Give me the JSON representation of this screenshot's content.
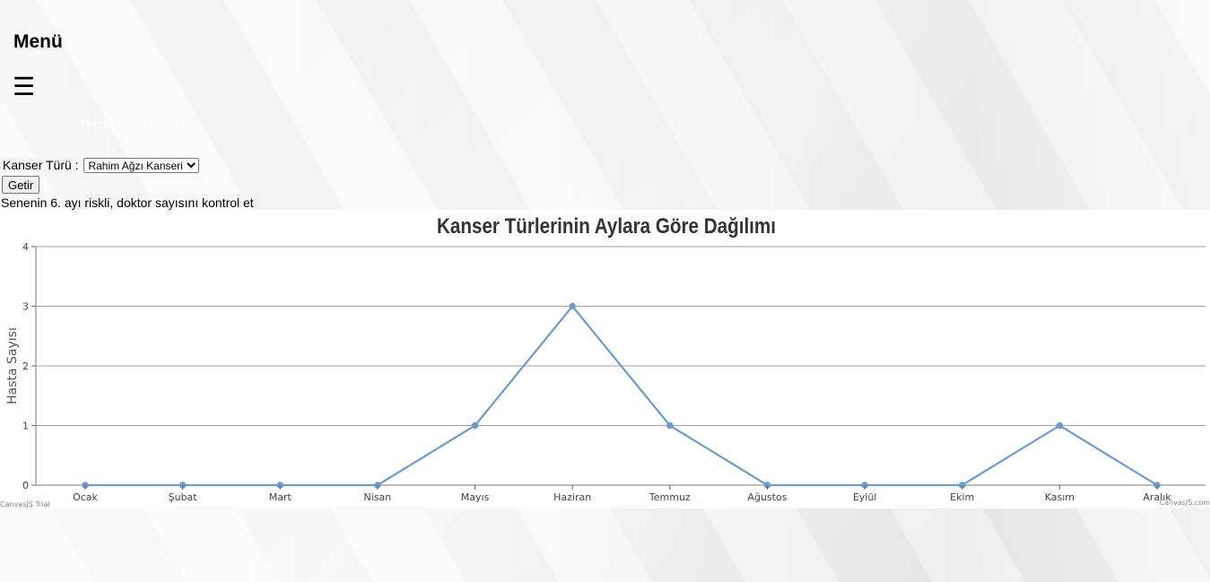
{
  "menu": {
    "title": "Menü",
    "hamburger": "☰",
    "faded_text": "Hasta Takip Sistemi"
  },
  "form": {
    "label": "Kanser Türü :",
    "select_value": "Rahim Ağzı Kanseri",
    "button_label": "Getir"
  },
  "warning": "Senenin 6. ayı riskli, doktor sayısını kontrol et",
  "credits": {
    "left": "CanvasJS Trial",
    "right": "CanvasJS.com"
  },
  "colors": {
    "line": "#6e9bc9",
    "grid": "#a0a0a0"
  },
  "chart_data": {
    "type": "line",
    "title": "Kanser Türlerinin Aylara Göre Dağılımı",
    "xlabel": "",
    "ylabel": "Hasta Sayısı",
    "categories": [
      "Ocak",
      "Şubat",
      "Mart",
      "Nisan",
      "Mayıs",
      "Haziran",
      "Temmuz",
      "Ağustos",
      "Eylül",
      "Ekim",
      "Kasım",
      "Aralık"
    ],
    "values": [
      0,
      0,
      0,
      0,
      1,
      3,
      1,
      0,
      0,
      0,
      1,
      0
    ],
    "ylim": [
      0,
      4
    ],
    "yticks": [
      "0",
      "1",
      "2",
      "3",
      "4"
    ],
    "grid": true
  }
}
